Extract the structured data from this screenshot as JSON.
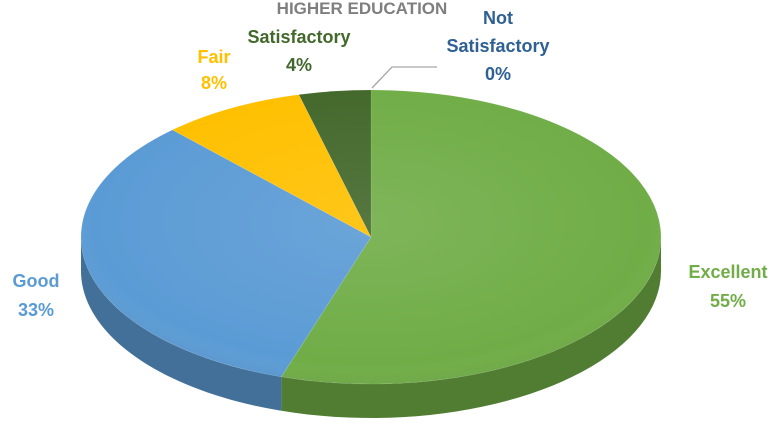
{
  "chart_data": {
    "type": "pie",
    "title": "HIGHER EDUCATION",
    "style": "3d",
    "slices": [
      {
        "label": "Excellent",
        "value": 55,
        "value_label": "55%",
        "color": "#70ad47",
        "label_color": "#70ad47"
      },
      {
        "label": "Good",
        "value": 33,
        "value_label": "33%",
        "color": "#5b9bd5",
        "label_color": "#5b9bd5"
      },
      {
        "label": "Fair",
        "value": 8,
        "value_label": "8%",
        "color": "#ffc000",
        "label_color": "#ffc000"
      },
      {
        "label": "Satisfactory",
        "value": 4,
        "value_label": "4%",
        "color": "#43682b",
        "label_color": "#43682b"
      },
      {
        "label": "Not Satisfactory",
        "value": 0,
        "value_label": "0%",
        "color": "#264478",
        "label_color": "#2e6094"
      }
    ]
  }
}
